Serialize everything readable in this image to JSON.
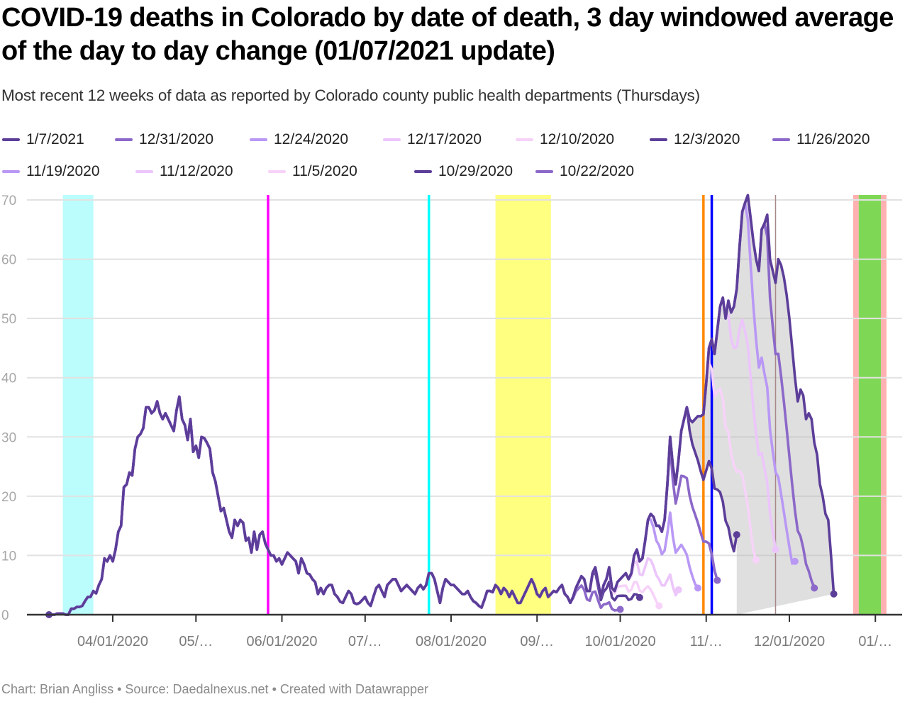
{
  "title": "COVID-19 deaths in Colorado by date of death, 3 day windowed average of the day to day change (01/07/2021 update)",
  "subtitle": "Most recent 12 weeks of data as reported by Colorado county public health departments (Thursdays)",
  "footer": {
    "chart_by": "Chart: Brian Angliss",
    "source": "Source: Daedalnexus.net",
    "created_with": "Created with Datawrapper",
    "separator": "•"
  },
  "chart_data": {
    "type": "line",
    "title": "COVID-19 deaths in Colorado by date of death, 3 day windowed average of the day to day change (01/07/2021 update)",
    "xlabel": "",
    "ylabel": "",
    "ylim": [
      0,
      70
    ],
    "yticks": [
      0,
      10,
      20,
      30,
      40,
      50,
      60,
      70
    ],
    "ytick_labels": [
      "0",
      "10",
      "20",
      "30",
      "40",
      "50",
      "60",
      "70"
    ],
    "xlim": [
      "2020-03-05",
      "2021-01-12"
    ],
    "xticks": [
      "2020-04-01",
      "2020-05-01",
      "2020-06-01",
      "2020-07-01",
      "2020-08-01",
      "2020-09-01",
      "2020-10-01",
      "2020-11-01",
      "2020-12-01",
      "2021-01-01"
    ],
    "xtick_labels": [
      "04/01/2020",
      "05/…",
      "06/01/2020",
      "07/…",
      "08/01/2020",
      "09/…",
      "10/01/2020",
      "11/…",
      "12/01/2020",
      "01/…"
    ],
    "grid": true,
    "legend_position": "top",
    "shading": "range between series shaded grey",
    "highlight_bands": [
      {
        "start": "2020-03-14",
        "end": "2020-03-25",
        "color": "#bbfcfc"
      },
      {
        "start": "2020-08-17",
        "end": "2020-09-06",
        "color": "#ffff80"
      },
      {
        "start": "2020-12-24",
        "end": "2020-12-26",
        "color": "#ffb0b0"
      },
      {
        "start": "2020-12-26",
        "end": "2021-01-03",
        "color": "#7fd855"
      },
      {
        "start": "2021-01-03",
        "end": "2021-01-05",
        "color": "#ffb0b0"
      }
    ],
    "markers": [
      {
        "date": "2020-05-27",
        "color": "#ff00ff"
      },
      {
        "date": "2020-07-24",
        "color": "#00ffff"
      },
      {
        "date": "2020-10-31",
        "color": "#ff8800"
      },
      {
        "date": "2020-11-03",
        "color": "#0000ff"
      },
      {
        "date": "2020-11-26",
        "color": "#a88888"
      }
    ],
    "base_series": {
      "start": "2020-03-09",
      "values": [
        0,
        0,
        0,
        0.2,
        0.2,
        0.2,
        0,
        0,
        1,
        1,
        1.3,
        1.3,
        1.5,
        2.3,
        3,
        3,
        4,
        3.6,
        5,
        6,
        9.5,
        9,
        10,
        9,
        11,
        14,
        15,
        21.5,
        22,
        24,
        23.5,
        28,
        30,
        30.5,
        31.5,
        35,
        35,
        34,
        34.5,
        36,
        34,
        33,
        34,
        33,
        32,
        31,
        34.5,
        36.8,
        33,
        32,
        29.5,
        33,
        27.5,
        28.5,
        26.5,
        30,
        29.8,
        29,
        28,
        24,
        22.5,
        20,
        17.5,
        18,
        16,
        14,
        13,
        16,
        15,
        16,
        15.5,
        12.5,
        13,
        10.5,
        14,
        11,
        13.5,
        14,
        12,
        11,
        10,
        10,
        9,
        9.5,
        8.5,
        9.5,
        10.5,
        10,
        9.5,
        9,
        7,
        9.5,
        8.5,
        7,
        6.8,
        6,
        5.5,
        3.5,
        4.5,
        3.5,
        4.5,
        5,
        5,
        3.5,
        3,
        2.2,
        2,
        3,
        4,
        3.5,
        2,
        1.8,
        2,
        2.5,
        3,
        2,
        1.5,
        3,
        4.5,
        5,
        4,
        3,
        5,
        5.5,
        6,
        6,
        5,
        4,
        4.5,
        5,
        4.5,
        4,
        3.5,
        4.5,
        5,
        4.3,
        5,
        7,
        7,
        6,
        4,
        2,
        4.5,
        6,
        5.5,
        5,
        5,
        4.5,
        4,
        3.5,
        3.5,
        4,
        3,
        2.3,
        2,
        1.5,
        1.2,
        2.5,
        4,
        4,
        3.8,
        5,
        4.5,
        3.5,
        4.5,
        4,
        3,
        4,
        3,
        2,
        2,
        3,
        4,
        5,
        6,
        5,
        3.5,
        3,
        4,
        4.5,
        3,
        3.5,
        4,
        3.8,
        4.5,
        5,
        3.5,
        3,
        2,
        3,
        4.5,
        5.5,
        6.5,
        6,
        4,
        4,
        7,
        8,
        5.5,
        3,
        5,
        6,
        8,
        4.5,
        4,
        5.5,
        6,
        6.5,
        7,
        6,
        7,
        10,
        11,
        9,
        9.5,
        12.5,
        16,
        17,
        16.5,
        15,
        15,
        14,
        16,
        22,
        30,
        25,
        22,
        26,
        31,
        33,
        35,
        33,
        32.5,
        33,
        33.5,
        33.5,
        33.8,
        39,
        45,
        46.5,
        44,
        48,
        52,
        53.5,
        50,
        53,
        51,
        52,
        55,
        62,
        68,
        69.5,
        70.8,
        67,
        63,
        60,
        58,
        65,
        66,
        67.5,
        60,
        58,
        56,
        60,
        59,
        57,
        54,
        50,
        45,
        40,
        36,
        38,
        37,
        33,
        34,
        33,
        29,
        27,
        22,
        20,
        17,
        16,
        10,
        3.5
      ]
    },
    "series": [
      {
        "name": "1/7/2021",
        "color": "#5c3e99",
        "end_offset": 0,
        "end_value": 3.5
      },
      {
        "name": "12/31/2020",
        "color": "#8c68c9",
        "end_offset": -7,
        "end_value": 4.5
      },
      {
        "name": "12/24/2020",
        "color": "#b998f5",
        "end_offset": -14,
        "end_value": 9
      },
      {
        "name": "12/17/2020",
        "color": "#ecc6fb",
        "end_offset": -21,
        "end_value": 11
      },
      {
        "name": "12/10/2020",
        "color": "#f7d3f9",
        "end_offset": -28,
        "end_value": 9.2
      },
      {
        "name": "12/3/2020",
        "color": "#5c3e99",
        "end_offset": -35,
        "end_value": 13.5
      },
      {
        "name": "11/26/2020",
        "color": "#8c68c9",
        "end_offset": -42,
        "end_value": 5.8
      },
      {
        "name": "11/19/2020",
        "color": "#b998f5",
        "end_offset": -49,
        "end_value": 4.5
      },
      {
        "name": "11/12/2020",
        "color": "#ecc6fb",
        "end_offset": -56,
        "end_value": 4.2
      },
      {
        "name": "11/5/2020",
        "color": "#f7d3f9",
        "end_offset": -63,
        "end_value": 1.5
      },
      {
        "name": "10/29/2020",
        "color": "#5c3e99",
        "end_offset": -70,
        "end_value": 2.9
      },
      {
        "name": "10/22/2020",
        "color": "#8c68c9",
        "end_offset": -77,
        "end_value": 0.9
      }
    ]
  }
}
